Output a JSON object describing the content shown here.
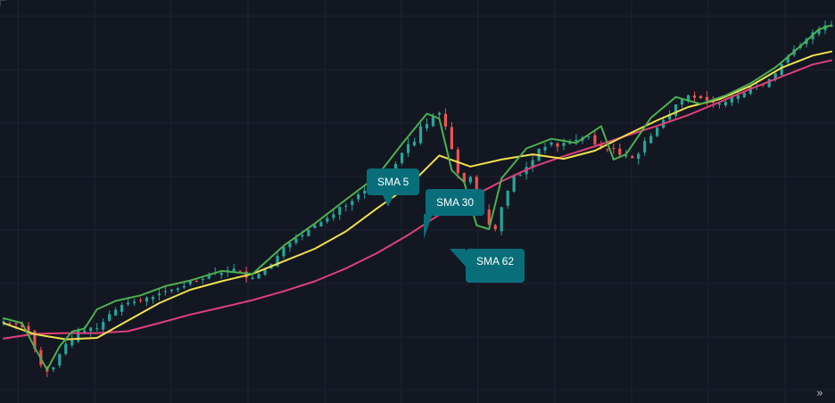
{
  "colors": {
    "background": "#131722",
    "grid": "#1f2330",
    "candle_up": "#26a69a",
    "candle_down": "#ef5350",
    "callout_bg": "#086f7a",
    "sma5": "#4caf50",
    "sma30": "#f2e14c",
    "sma62": "#e0407a"
  },
  "callouts": {
    "sma5": "SMA 5",
    "sma30": "SMA 30",
    "sma62": "SMA 62"
  },
  "controls": {
    "scroll_to_realtime_icon": "double-chevron-right-icon",
    "scroll_to_realtime_glyph": "»"
  },
  "chart_data": {
    "type": "line",
    "title": "",
    "xlabel": "",
    "ylabel": "",
    "grid": true,
    "ylim": [
      0,
      100
    ],
    "x_range": [
      0,
      133
    ],
    "series": [
      {
        "name": "SMA 5",
        "x": [
          0,
          3,
          5,
          7,
          9,
          11,
          13,
          15,
          18,
          22,
          26,
          30,
          35,
          40,
          45,
          50,
          55,
          60,
          64,
          68,
          70,
          72,
          74,
          76,
          78,
          80,
          84,
          88,
          92,
          96,
          98,
          100,
          104,
          108,
          112,
          116,
          120,
          124,
          128,
          131,
          133
        ],
        "values": [
          18.8,
          17.5,
          10.9,
          4.9,
          11.2,
          15.2,
          16.0,
          21.2,
          23.5,
          25.0,
          27.5,
          29.0,
          31.6,
          30.8,
          38.4,
          44.4,
          50.9,
          57.2,
          65.9,
          74.1,
          72.8,
          58.8,
          55.6,
          43.9,
          42.9,
          56.6,
          64.7,
          67.3,
          66.2,
          70.7,
          61.7,
          63.1,
          73.0,
          78.6,
          76.7,
          79.0,
          82.3,
          86.6,
          92.3,
          96.9,
          98.0
        ]
      },
      {
        "name": "SMA 30",
        "x": [
          0,
          5,
          10,
          15,
          20,
          25,
          30,
          35,
          40,
          45,
          50,
          55,
          60,
          65,
          70,
          75,
          80,
          85,
          90,
          95,
          100,
          105,
          110,
          115,
          120,
          125,
          130,
          133
        ],
        "values": [
          17.5,
          14.5,
          13.1,
          13.5,
          18.2,
          22.9,
          26.5,
          28.8,
          30.8,
          34.2,
          37.6,
          42.3,
          48.5,
          54.4,
          62.8,
          59.8,
          61.7,
          63.1,
          61.9,
          64.1,
          68.3,
          72.3,
          75.9,
          78.0,
          81.6,
          86.5,
          89.8,
          90.9
        ]
      },
      {
        "name": "SMA 62",
        "x": [
          0,
          5,
          10,
          15,
          20,
          25,
          30,
          35,
          40,
          45,
          50,
          55,
          60,
          65,
          70,
          75,
          80,
          85,
          90,
          95,
          100,
          105,
          110,
          115,
          120,
          125,
          130,
          133
        ],
        "values": [
          13.3,
          14.6,
          14.8,
          14.8,
          15.3,
          17.5,
          19.8,
          21.7,
          23.7,
          26.1,
          28.8,
          32.3,
          36.4,
          41.3,
          46.8,
          51.4,
          55.8,
          59.7,
          62.6,
          65.3,
          68.1,
          70.8,
          73.7,
          77.2,
          80.8,
          84.1,
          87.4,
          88.5
        ]
      }
    ],
    "candles": {
      "count": 134,
      "close": [
        18.0,
        17.5,
        17.2,
        16.4,
        15.4,
        10.6,
        6.2,
        4.4,
        5.5,
        9.1,
        11.9,
        12.9,
        15.4,
        15.5,
        16.3,
        16.1,
        17.8,
        19.9,
        21.1,
        22.4,
        23.0,
        23.3,
        23.6,
        24.4,
        24.6,
        25.5,
        26.1,
        26.6,
        26.9,
        27.5,
        28.8,
        28.8,
        29.4,
        30.5,
        31.1,
        31.1,
        31.8,
        32.2,
        31.4,
        29.8,
        29.8,
        30.8,
        31.9,
        33.4,
        35.7,
        38.1,
        39.2,
        40.4,
        41.3,
        42.7,
        44.0,
        44.8,
        45.9,
        46.9,
        48.9,
        49.2,
        50.5,
        52.3,
        53.3,
        54.2,
        55.6,
        56.9,
        57.9,
        60.5,
        63.5,
        65.9,
        66.5,
        70.7,
        71.3,
        73.6,
        74.3,
        70.6,
        64.6,
        58.0,
        55.6,
        57.0,
        49.4,
        48.1,
        44.1,
        42.9,
        48.8,
        53.3,
        57.2,
        57.6,
        59.7,
        61.5,
        64.6,
        65.1,
        66.3,
        65.2,
        66.2,
        66.3,
        67.0,
        67.6,
        67.9,
        65.8,
        65.0,
        64.3,
        64.7,
        63.0,
        62.9,
        62.1,
        63.2,
        66.7,
        68.1,
        70.3,
        72.4,
        74.0,
        76.6,
        77.9,
        79.1,
        78.4,
        78.2,
        77.6,
        77.1,
        76.9,
        77.3,
        78.5,
        79.1,
        79.7,
        81.3,
        81.6,
        81.8,
        83.4,
        85.0,
        87.5,
        89.5,
        91.5,
        92.6,
        94.3,
        96.1,
        97.0,
        98.0,
        98.0
      ]
    }
  }
}
